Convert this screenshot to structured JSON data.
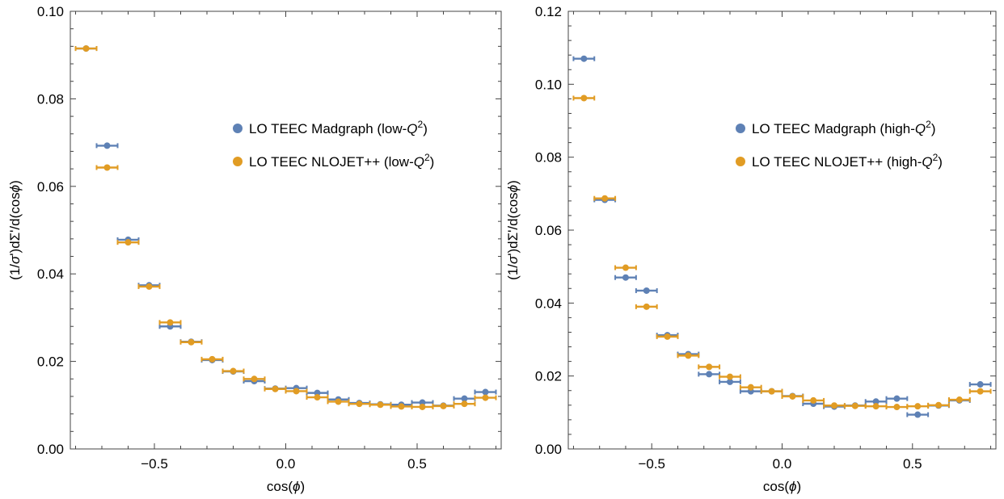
{
  "chart_data": [
    {
      "type": "scatter",
      "title": "",
      "xlabel": "cos(ϕ)",
      "ylabel": "(1/σ')dΣ'/d(cosϕ)",
      "xlim": [
        -0.82,
        0.82
      ],
      "ylim": [
        0,
        0.1
      ],
      "xticks": [
        -0.5,
        0.0,
        0.5
      ],
      "xtick_labels": [
        "-0.5",
        "0.0",
        "0.5"
      ],
      "yticks": [
        0.0,
        0.02,
        0.04,
        0.06,
        0.08,
        0.1
      ],
      "ytick_labels": [
        "0.00",
        "0.02",
        "0.04",
        "0.06",
        "0.08",
        "0.10"
      ],
      "legend_position": "right",
      "grid": false,
      "bin_half_width": 0.04,
      "x": [
        -0.76,
        -0.68,
        -0.6,
        -0.52,
        -0.44,
        -0.36,
        -0.28,
        -0.2,
        -0.12,
        -0.04,
        0.04,
        0.12,
        0.2,
        0.28,
        0.36,
        0.44,
        0.52,
        0.6,
        0.68,
        0.76
      ],
      "series": [
        {
          "name": "LO TEEC Madgraph (low-Q²)",
          "color": "#5E81B5",
          "values": [
            0.0915,
            0.0693,
            0.0478,
            0.0374,
            0.028,
            0.0245,
            0.0203,
            0.0177,
            0.0155,
            0.0138,
            0.0139,
            0.0128,
            0.0113,
            0.0105,
            0.0102,
            0.0101,
            0.0106,
            0.0099,
            0.0115,
            0.013
          ]
        },
        {
          "name": "LO TEEC NLOJET++ (low-Q²)",
          "color": "#E19C24",
          "values": [
            0.0915,
            0.0643,
            0.0472,
            0.0371,
            0.0289,
            0.0244,
            0.0205,
            0.0178,
            0.016,
            0.0137,
            0.0132,
            0.0118,
            0.0108,
            0.0103,
            0.0101,
            0.0097,
            0.0096,
            0.0098,
            0.0103,
            0.0117
          ]
        }
      ]
    },
    {
      "type": "scatter",
      "title": "",
      "xlabel": "cos(ϕ)",
      "ylabel": "(1/σ')dΣ'/d(cosϕ)",
      "xlim": [
        -0.82,
        0.82
      ],
      "ylim": [
        0,
        0.12
      ],
      "xticks": [
        -0.5,
        0.0,
        0.5
      ],
      "xtick_labels": [
        "-0.5",
        "0.0",
        "0.5"
      ],
      "yticks": [
        0.0,
        0.02,
        0.04,
        0.06,
        0.08,
        0.1,
        0.12
      ],
      "ytick_labels": [
        "0.00",
        "0.02",
        "0.04",
        "0.06",
        "0.08",
        "0.10",
        "0.12"
      ],
      "legend_position": "right",
      "grid": false,
      "bin_half_width": 0.04,
      "x": [
        -0.76,
        -0.68,
        -0.6,
        -0.52,
        -0.44,
        -0.36,
        -0.28,
        -0.2,
        -0.12,
        -0.04,
        0.04,
        0.12,
        0.2,
        0.28,
        0.36,
        0.44,
        0.52,
        0.6,
        0.68,
        0.76
      ],
      "series": [
        {
          "name": "LO TEEC Madgraph (high-Q²)",
          "color": "#5E81B5",
          "values": [
            0.107,
            0.0683,
            0.047,
            0.0434,
            0.0312,
            0.026,
            0.0205,
            0.0184,
            0.0158,
            0.0158,
            0.0145,
            0.0124,
            0.0116,
            0.0119,
            0.013,
            0.0138,
            0.0094,
            0.0119,
            0.0133,
            0.0177
          ]
        },
        {
          "name": "LO TEEC NLOJET++ (high-Q²)",
          "color": "#E19C24",
          "values": [
            0.0962,
            0.0687,
            0.0497,
            0.039,
            0.0308,
            0.0256,
            0.0225,
            0.0198,
            0.0169,
            0.0158,
            0.0144,
            0.0133,
            0.0119,
            0.0118,
            0.0117,
            0.0115,
            0.0117,
            0.012,
            0.0135,
            0.0158
          ]
        }
      ]
    }
  ]
}
